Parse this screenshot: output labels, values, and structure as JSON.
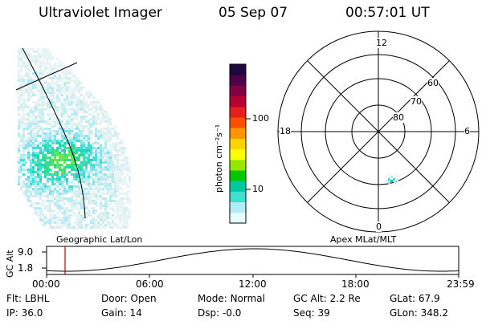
{
  "header": {
    "instrument": "Ultraviolet Imager",
    "date": "05 Sep 07",
    "time": "00:57:01 UT"
  },
  "colorbar": {
    "label": "photon cm⁻²s⁻¹",
    "ticks": [
      "100",
      "10"
    ]
  },
  "panels": {
    "left_caption": "Geographic Lat/Lon",
    "right_caption": "Apex MLat/MLT"
  },
  "polar": {
    "mlt_labels": {
      "top": "12",
      "left": "18",
      "right": "6",
      "bottom": "0"
    },
    "lat_labels": [
      "60",
      "70",
      "80"
    ]
  },
  "timeline": {
    "ylabel": "GC Alt",
    "ticks": [
      "9.0",
      "1.8"
    ],
    "xticks": [
      "00:00",
      "06:00",
      "12:00",
      "18:00",
      "23:59"
    ]
  },
  "status": {
    "flt_label": "Flt:",
    "flt_value": "LBHL",
    "ip_label": "IP:",
    "ip_value": "36.0",
    "door_label": "Door:",
    "door_value": "Open",
    "gain_label": "Gain:",
    "gain_value": "14",
    "mode_label": "Mode:",
    "mode_value": "Normal",
    "dsp_label": "Dsp:",
    "dsp_value": "-0.0",
    "gcalt_label": "GC Alt:",
    "gcalt_value": "2.2 Re",
    "seq_label": "Seq:",
    "seq_value": "39",
    "glat_label": "GLat:",
    "glat_value": "67.9",
    "glon_label": "GLon:",
    "glon_value": "348.2"
  },
  "colors": {
    "colorbar": [
      "#e6ffff",
      "#b4ebf5",
      "#40e0d0",
      "#00c8a0",
      "#00c800",
      "#96e600",
      "#ffff00",
      "#ffd200",
      "#ff9600",
      "#ff5000",
      "#e61e1e",
      "#b40032",
      "#820041",
      "#50004b",
      "#1e0a3c"
    ],
    "marker": "#c00000"
  }
}
